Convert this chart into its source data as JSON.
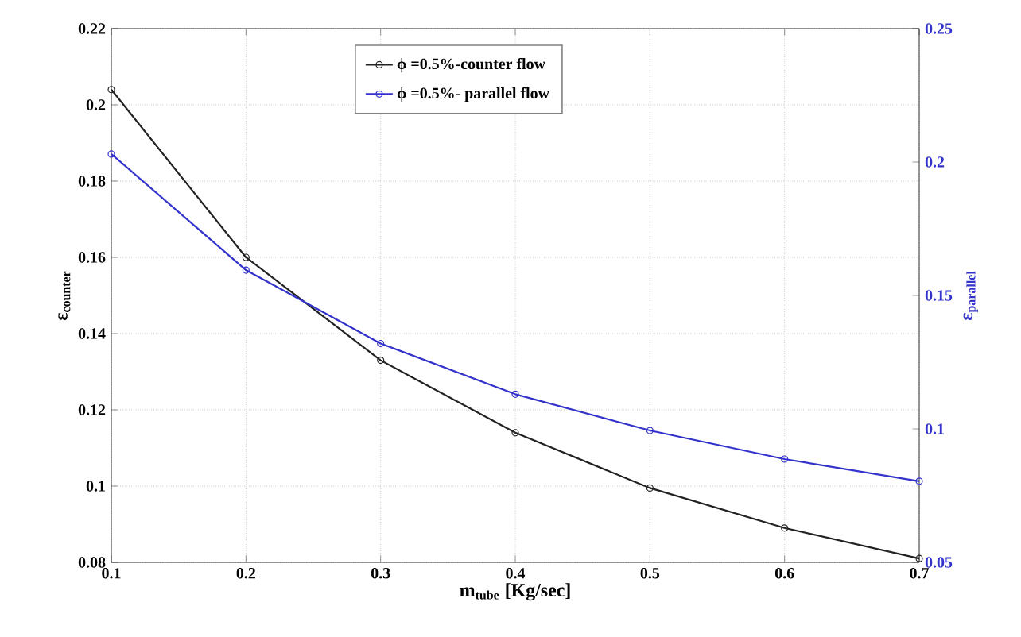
{
  "chart_data": {
    "type": "line",
    "xlabel": "m$_{tube}$  [Kg/sec]",
    "ylabel": "ε$_{counter}$",
    "y2label": "ε$_{parallel}$",
    "x": [
      0.1,
      0.2,
      0.3,
      0.4,
      0.5,
      0.6,
      0.7
    ],
    "series": [
      {
        "name": "ϕ =0.5%-counter flow",
        "color": "#222222",
        "values": [
          0.204,
          0.16,
          0.133,
          0.114,
          0.0995,
          0.089,
          0.081
        ]
      },
      {
        "name": "ϕ =0.5%- parallel flow",
        "color": "#3333cc",
        "axis": "y2",
        "values": [
          0.203,
          0.1595,
          0.132,
          0.113,
          0.0994,
          0.0887,
          0.0804
        ]
      }
    ],
    "xlim": [
      0.1,
      0.7
    ],
    "xticks": [
      0.1,
      0.2,
      0.3,
      0.4,
      0.5,
      0.6,
      0.7
    ],
    "ylim": [
      0.08,
      0.22
    ],
    "yticks": [
      0.08,
      0.1,
      0.12,
      0.14,
      0.16,
      0.18,
      0.2,
      0.22
    ],
    "y2lim": [
      0.05,
      0.25
    ],
    "y2ticks": [
      0.05,
      0.1,
      0.15,
      0.2,
      0.25
    ],
    "grid": true,
    "legend": "top",
    "marker": "circle",
    "line_style": "solid"
  }
}
